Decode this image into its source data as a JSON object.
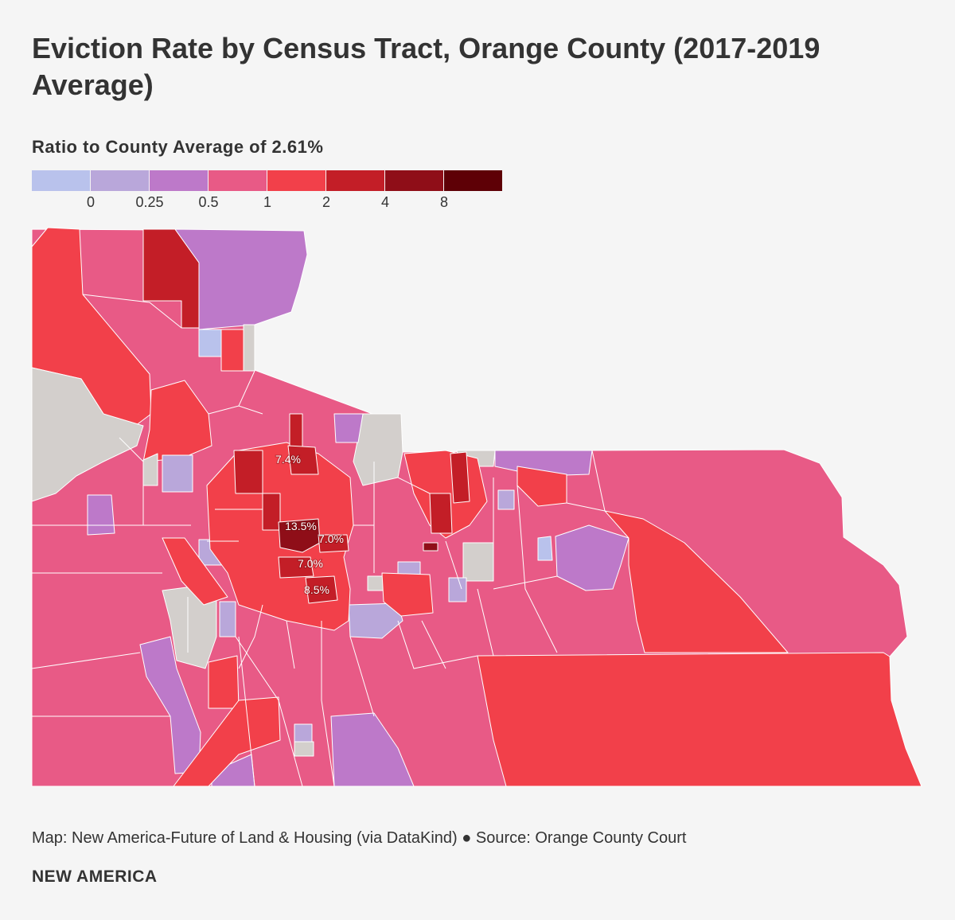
{
  "title": "Eviction Rate by Census Tract, Orange County (2017-2019 Average)",
  "legend": {
    "title": "Ratio to County Average of 2.61%",
    "colors": [
      "#b9c2ec",
      "#b9a7da",
      "#bd79c9",
      "#e85a86",
      "#f2404a",
      "#c31e27",
      "#8f0e18",
      "#5e0006"
    ],
    "ticks": [
      "0",
      "0.25",
      "0.5",
      "1",
      "2",
      "4",
      "8"
    ],
    "no_data_color": "#d3cfcc"
  },
  "map": {
    "labels": [
      {
        "text": "7.4%",
        "x": 362,
        "y": 302
      },
      {
        "text": "13.5%",
        "x": 378,
        "y": 386
      },
      {
        "text": "7.0%",
        "x": 416,
        "y": 402
      },
      {
        "text": "7.0%",
        "x": 390,
        "y": 433
      },
      {
        "text": "8.5%",
        "x": 398,
        "y": 466
      }
    ]
  },
  "footer": {
    "source": "Map: New America-Future of Land & Housing (via DataKind) ● Source: Orange County Court",
    "brand": "NEW AMERICA"
  }
}
